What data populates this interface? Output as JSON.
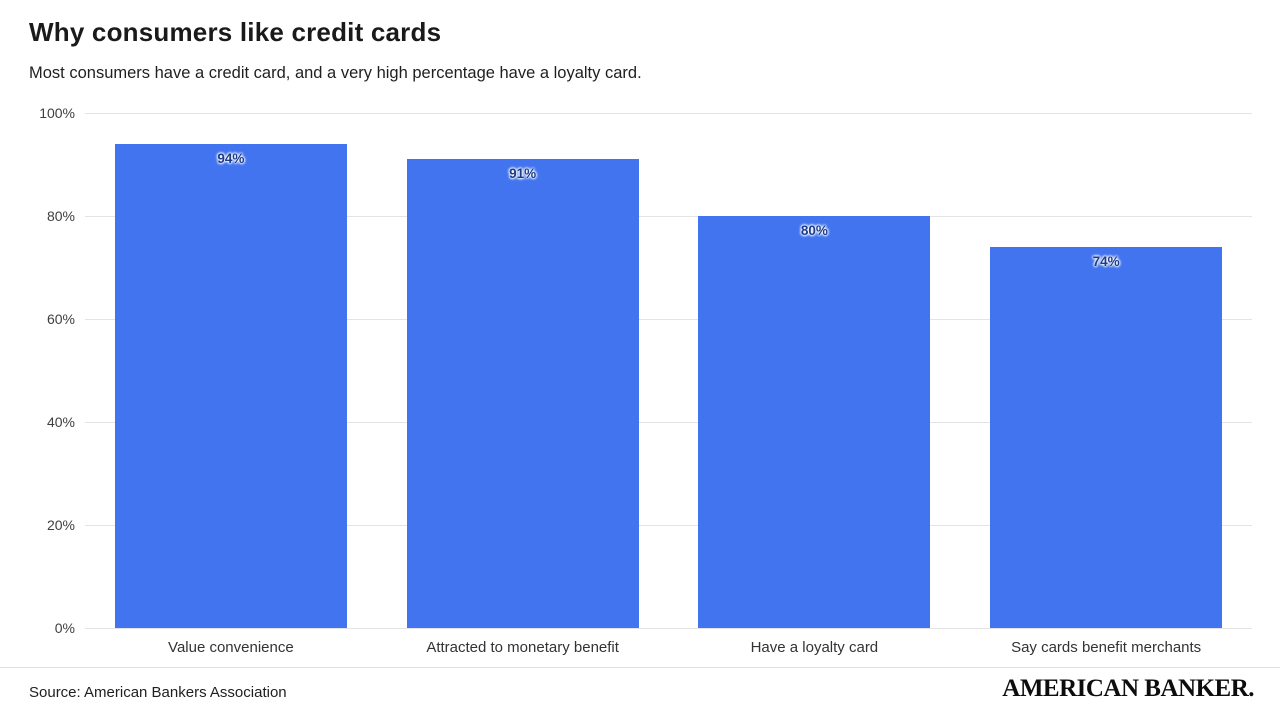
{
  "header": {
    "title": "Why consumers like credit cards",
    "subtitle": "Most consumers have a credit card, and a very high percentage have a loyalty card."
  },
  "chart_data": {
    "type": "bar",
    "title": "Why consumers like credit cards",
    "subtitle": "Most consumers have a credit card, and a very high percentage have a loyalty card.",
    "categories": [
      "Value convenience",
      "Attracted to monetary benefit",
      "Have a loyalty card",
      "Say cards benefit merchants"
    ],
    "values": [
      94,
      91,
      80,
      74
    ],
    "value_labels": [
      "94%",
      "91%",
      "80%",
      "74%"
    ],
    "xlabel": "",
    "ylabel": "",
    "ylim": [
      0,
      100
    ],
    "yticks": [
      0,
      20,
      40,
      60,
      80,
      100
    ],
    "ytick_labels": [
      "0%",
      "20%",
      "40%",
      "60%",
      "80%",
      "100%"
    ],
    "grid": true,
    "legend": "none",
    "bar_color": "#4274ef",
    "value_label_color": "#1b3c8c",
    "gridline_color": "#e4e4e4"
  },
  "footer": {
    "source": "Source: American Bankers Association",
    "brand": "AMERICAN BANKER."
  }
}
